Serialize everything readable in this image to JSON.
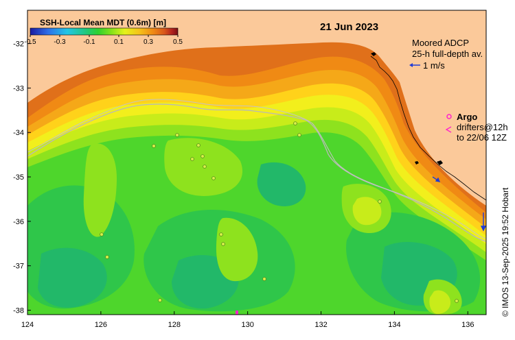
{
  "date": "21 Jun 2023",
  "colorbar": {
    "title": "SSH-Local Mean MDT (0.6m) [m]",
    "ticks": [
      "-0.5",
      "-0.3",
      "-0.1",
      "0.1",
      "0.3",
      "0.5"
    ],
    "values": [
      -0.5,
      -0.3,
      -0.1,
      0.1,
      0.3,
      0.5
    ],
    "colors": [
      "#1a1aa0",
      "#2e6ee8",
      "#22c6e6",
      "#20c87a",
      "#2fd12f",
      "#86e21a",
      "#e4f21a",
      "#f5c21a",
      "#f08a14",
      "#d8561a",
      "#b2231e",
      "#7a0f14"
    ]
  },
  "adcp": {
    "line1": "Moored ADCP",
    "line2": "25-h full-depth av.",
    "scale": "1 m/s",
    "color": "#1f3bd6"
  },
  "argo": {
    "label": "Argo",
    "color": "#ff22cc"
  },
  "drifters": {
    "line1": "drifters@12h",
    "line2": "to 22/06 12Z",
    "color": "#ff22cc"
  },
  "credit": "© IMOS 13-Sep-2025 19:52 Hobart",
  "colors": {
    "land": "#fbc99a",
    "contour": "#b8b8b8"
  },
  "axes": {
    "x_ticks": [
      "124",
      "126",
      "128",
      "130",
      "132",
      "134",
      "136"
    ],
    "x_values": [
      124,
      126,
      128,
      130,
      132,
      134,
      136
    ],
    "y_ticks": [
      "-32",
      "-33",
      "-34",
      "-35",
      "-36",
      "-37",
      "-38"
    ],
    "y_values": [
      -32,
      -33,
      -34,
      -35,
      -36,
      -37,
      -38
    ],
    "lon_range": [
      124,
      136.5
    ],
    "lat_range": [
      -38.1,
      -31.25
    ]
  }
}
